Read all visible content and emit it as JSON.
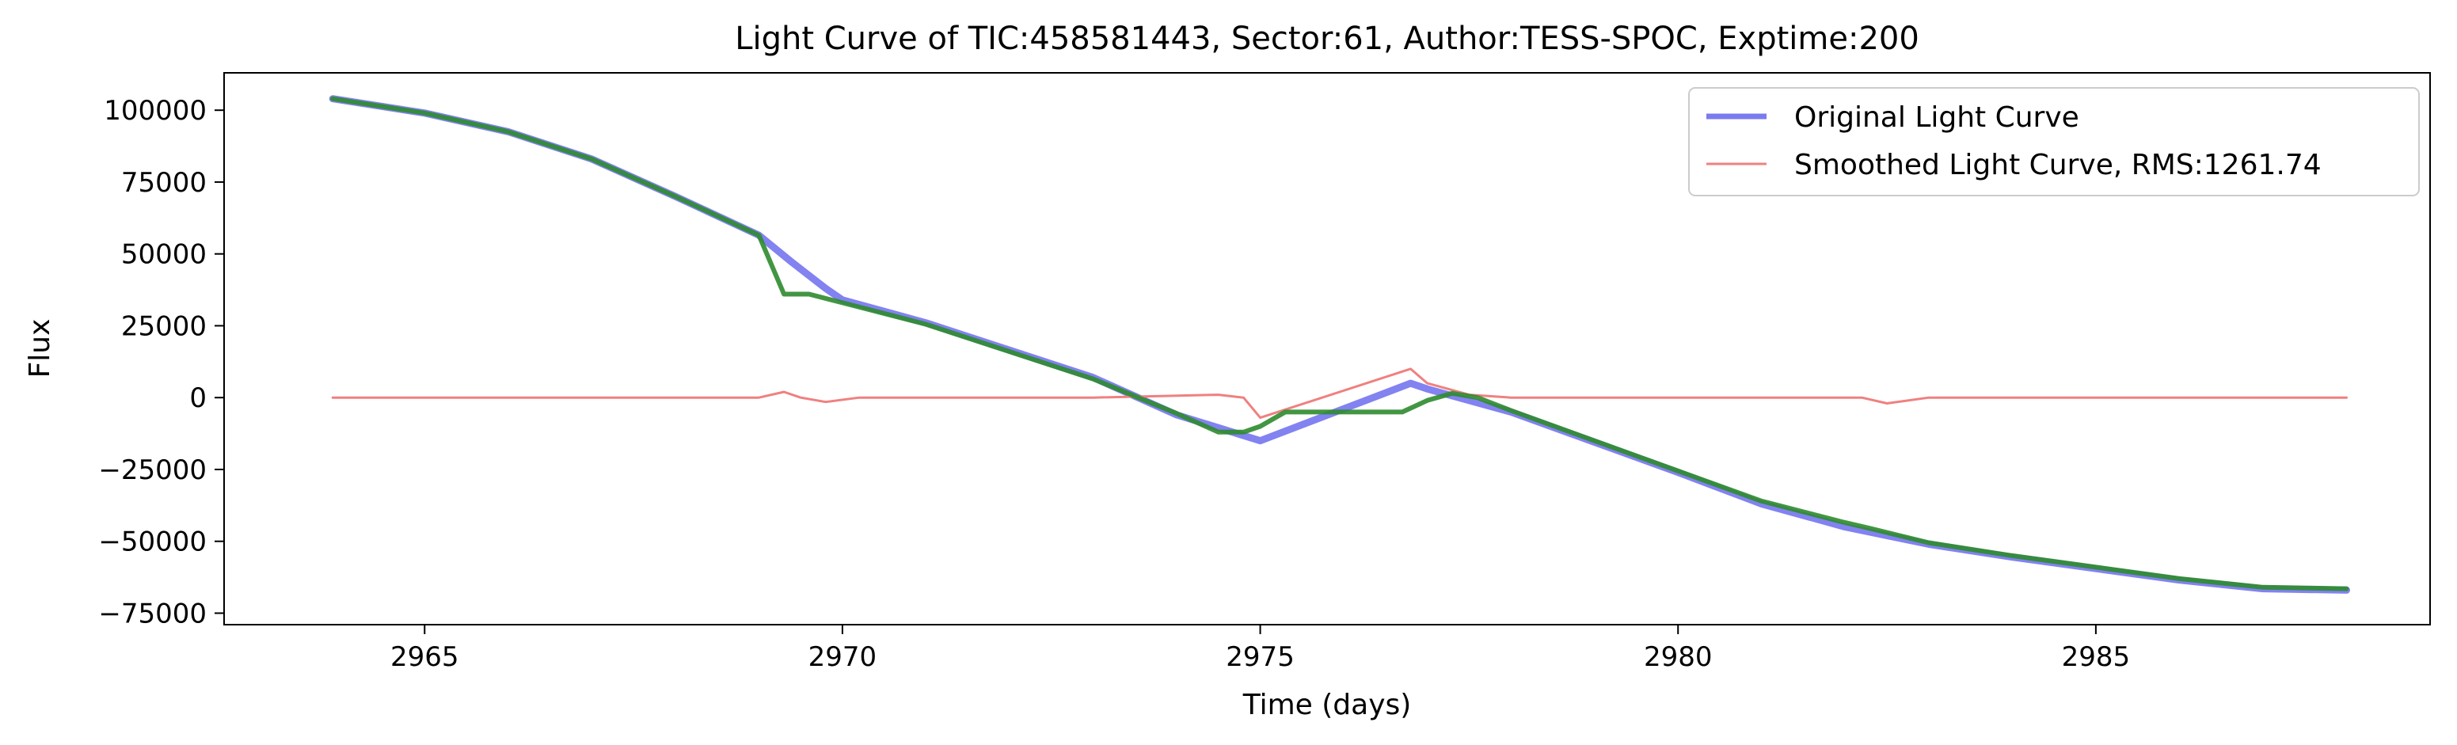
{
  "chart_data": {
    "type": "line",
    "title": "Light Curve of TIC:458581443, Sector:61, Author:TESS-SPOC, Exptime:200",
    "xlabel": "Time (days)",
    "ylabel": "Flux",
    "xlim": [
      2962.6,
      2989.0
    ],
    "ylim": [
      -79000,
      113000
    ],
    "xticks": [
      2965,
      2970,
      2975,
      2980,
      2985
    ],
    "yticks": [
      100000,
      75000,
      50000,
      25000,
      0,
      -25000,
      -50000,
      -75000
    ],
    "grid": false,
    "legend_position": "top-right",
    "series": [
      {
        "name": "Original Light Curve",
        "color": "#7b7bf0",
        "points": [
          [
            2963.9,
            104000
          ],
          [
            2965.0,
            99000
          ],
          [
            2966.0,
            92500
          ],
          [
            2967.0,
            83000
          ],
          [
            2968.0,
            70000
          ],
          [
            2969.0,
            56500
          ],
          [
            2969.4,
            47000
          ],
          [
            2969.8,
            38000
          ],
          [
            2970.0,
            34000
          ],
          [
            2971.0,
            26000
          ],
          [
            2972.0,
            16500
          ],
          [
            2973.0,
            7000
          ],
          [
            2974.0,
            -6000
          ],
          [
            2975.0,
            -15000
          ],
          [
            2976.8,
            5000
          ],
          [
            2977.0,
            3000
          ],
          [
            2978.0,
            -5000
          ],
          [
            2979.0,
            -15500
          ],
          [
            2980.0,
            -26000
          ],
          [
            2981.0,
            -37000
          ],
          [
            2982.0,
            -45000
          ],
          [
            2983.0,
            -51000
          ],
          [
            2984.0,
            -55500
          ],
          [
            2985.0,
            -59500
          ],
          [
            2986.0,
            -63500
          ],
          [
            2987.0,
            -66500
          ],
          [
            2988.0,
            -67000
          ]
        ]
      },
      {
        "name": "Smoothed Light Curve, RMS:1261.74",
        "color": "#f08080",
        "points": [
          [
            2963.9,
            0
          ],
          [
            2969.0,
            0
          ],
          [
            2969.3,
            2000
          ],
          [
            2969.5,
            0
          ],
          [
            2969.8,
            -1500
          ],
          [
            2970.2,
            0
          ],
          [
            2973.0,
            0
          ],
          [
            2974.5,
            1000
          ],
          [
            2974.8,
            0
          ],
          [
            2975.0,
            -7000
          ],
          [
            2976.8,
            10000
          ],
          [
            2977.0,
            5000
          ],
          [
            2977.5,
            1000
          ],
          [
            2978.0,
            0
          ],
          [
            2982.2,
            0
          ],
          [
            2982.5,
            -2000
          ],
          [
            2983.0,
            0
          ],
          [
            2988.0,
            0
          ]
        ]
      },
      {
        "name": "",
        "color": "#2e8b2e",
        "points": [
          [
            2963.9,
            104000
          ],
          [
            2965.0,
            99000
          ],
          [
            2966.0,
            92500
          ],
          [
            2967.0,
            83000
          ],
          [
            2968.0,
            70000
          ],
          [
            2969.0,
            56500
          ],
          [
            2969.3,
            36000
          ],
          [
            2969.6,
            36000
          ],
          [
            2970.0,
            33000
          ],
          [
            2971.0,
            25500
          ],
          [
            2972.0,
            16000
          ],
          [
            2973.0,
            6500
          ],
          [
            2974.0,
            -5500
          ],
          [
            2974.5,
            -12000
          ],
          [
            2974.8,
            -12000
          ],
          [
            2975.0,
            -10000
          ],
          [
            2975.3,
            -5000
          ],
          [
            2976.5,
            -5000
          ],
          [
            2976.7,
            -5000
          ],
          [
            2977.0,
            -1000
          ],
          [
            2977.3,
            1500
          ],
          [
            2977.6,
            0
          ],
          [
            2978.0,
            -4500
          ],
          [
            2979.0,
            -15000
          ],
          [
            2980.0,
            -25500
          ],
          [
            2981.0,
            -36000
          ],
          [
            2982.0,
            -43500
          ],
          [
            2982.3,
            -45500
          ],
          [
            2983.0,
            -50500
          ],
          [
            2984.0,
            -55000
          ],
          [
            2985.0,
            -59000
          ],
          [
            2986.0,
            -63000
          ],
          [
            2987.0,
            -66000
          ],
          [
            2988.0,
            -66500
          ]
        ]
      }
    ]
  }
}
